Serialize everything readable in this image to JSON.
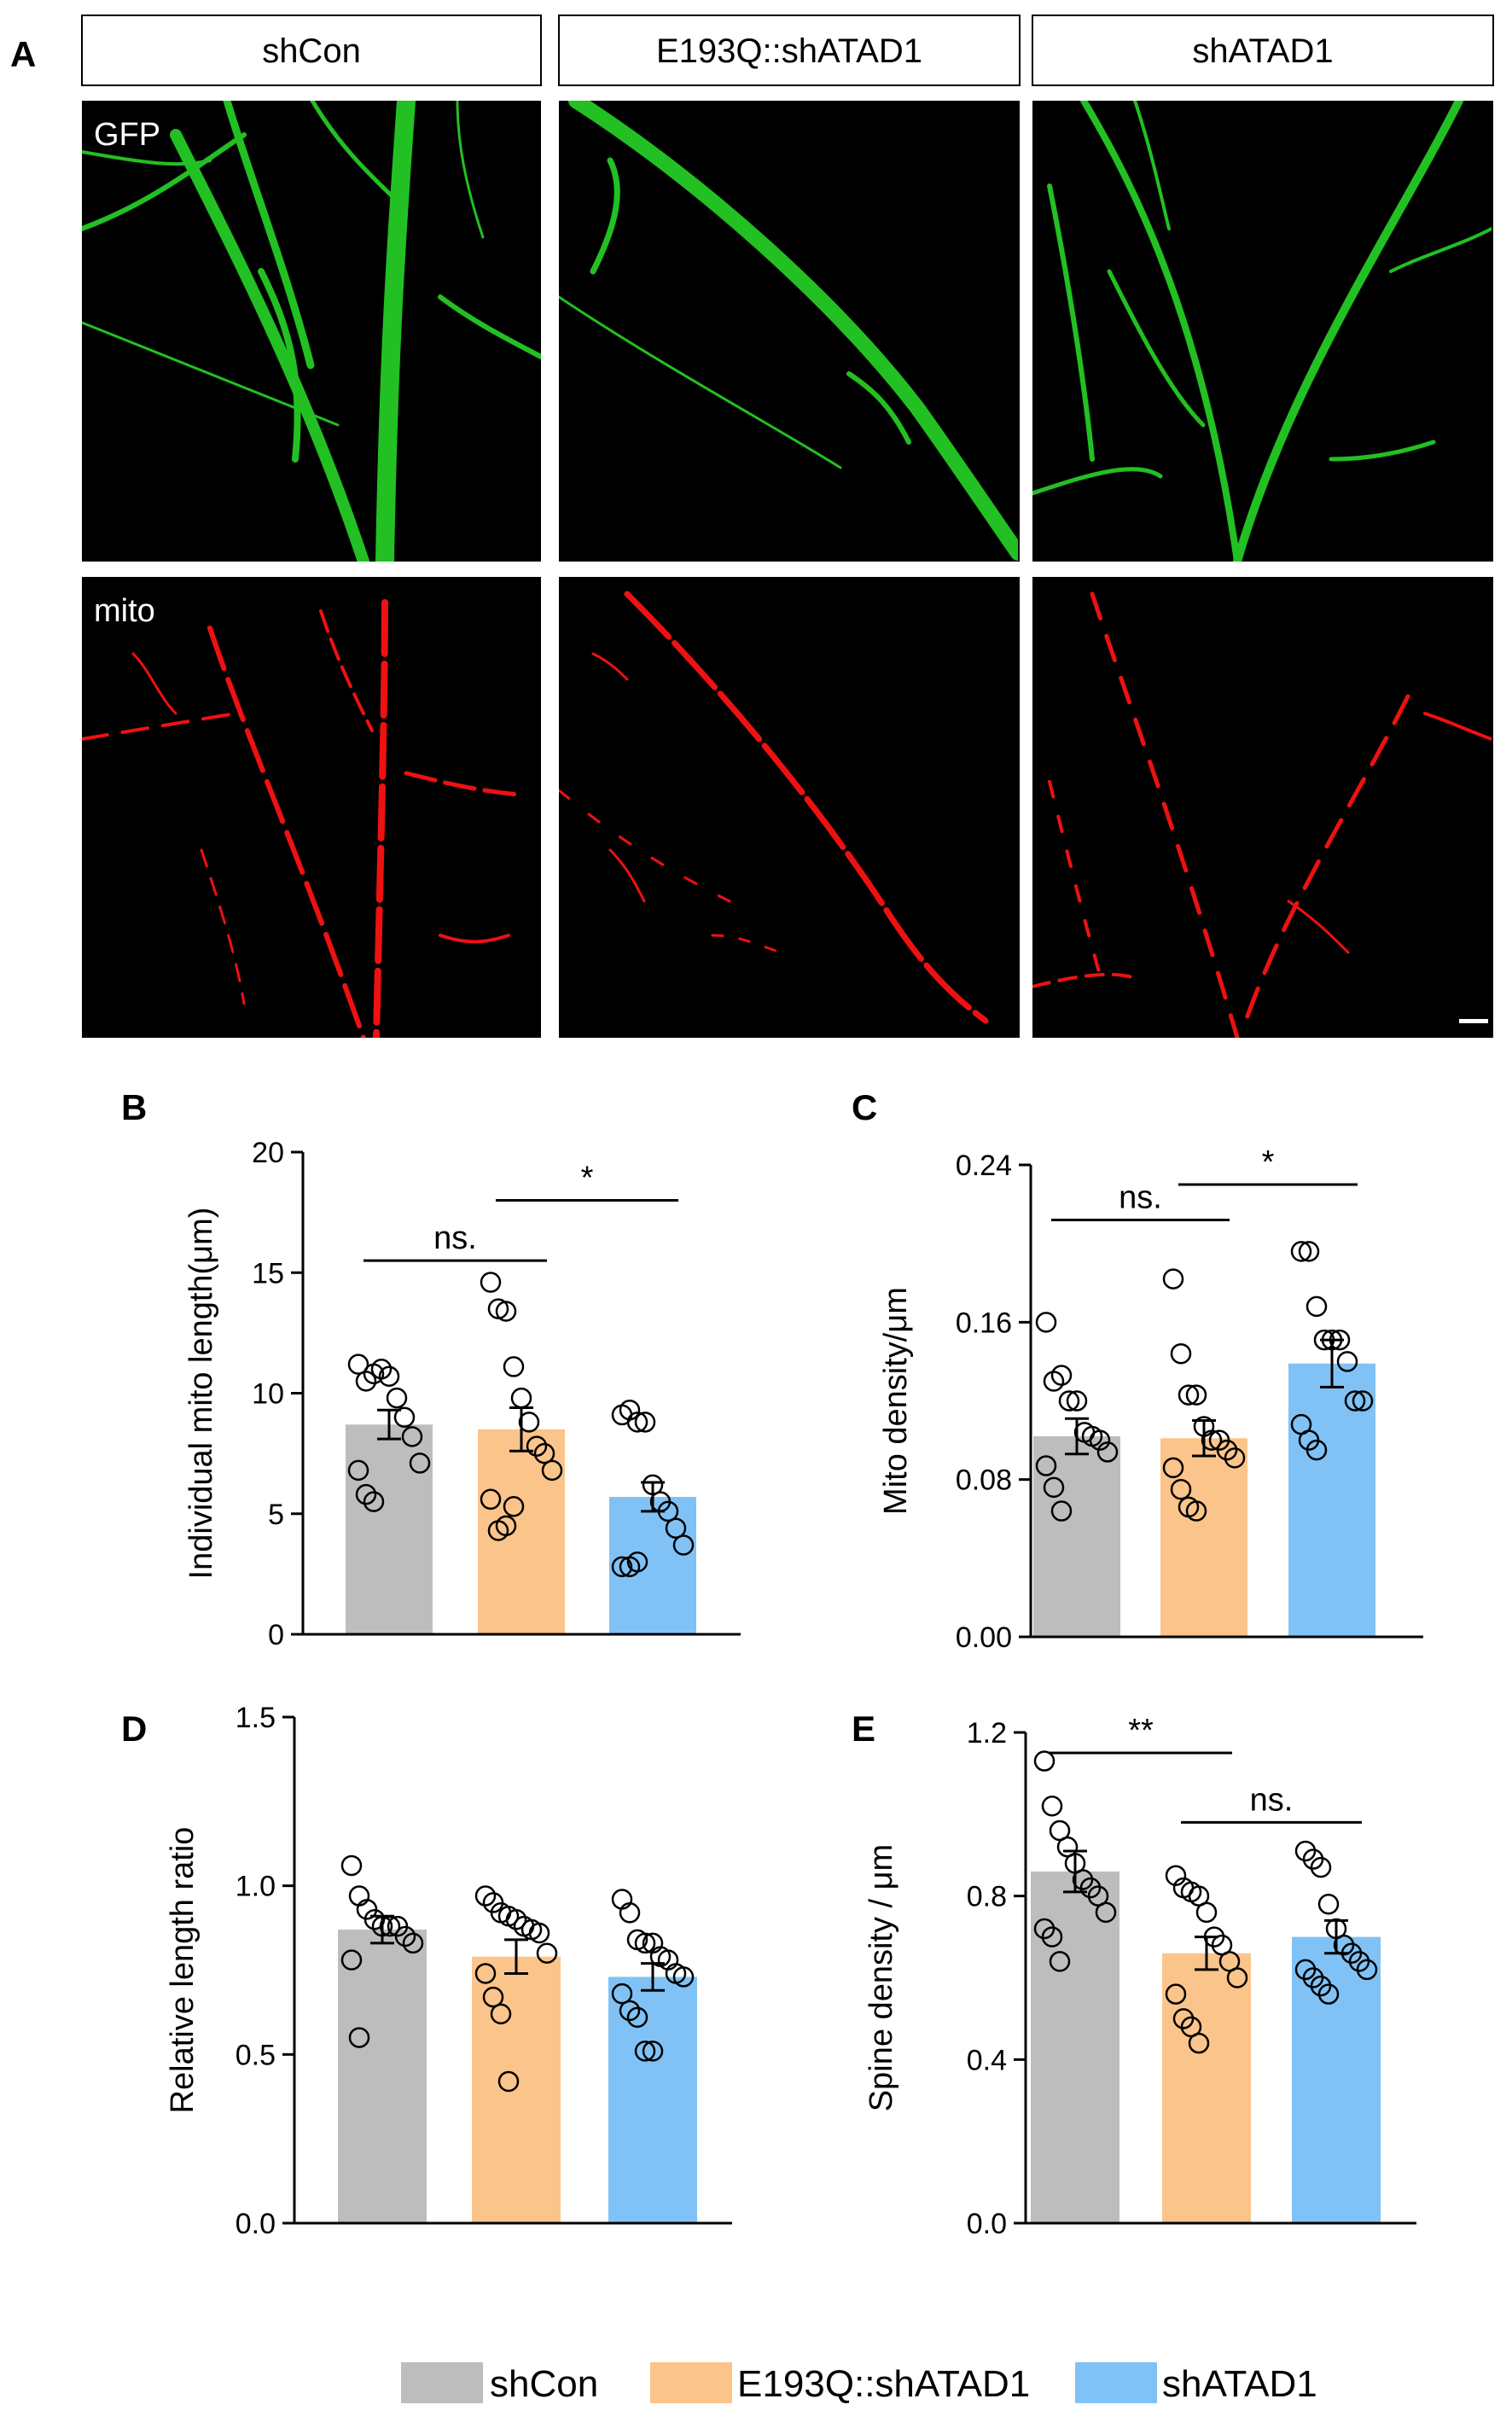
{
  "panels": {
    "A": "A",
    "B": "B",
    "C": "C",
    "D": "D",
    "E": "E"
  },
  "micrograph": {
    "columns": [
      "shCon",
      "E193Q::shATAD1",
      "shATAD1"
    ],
    "row_labels": [
      "GFP",
      "mito"
    ],
    "colors": {
      "gfp": "#22c022",
      "mito": "#ee1111",
      "background": "#000000"
    }
  },
  "legend": {
    "items": [
      {
        "label": "shCon",
        "color": "#bdbdbd"
      },
      {
        "label": "E193Q::shATAD1",
        "color": "#fbc48a"
      },
      {
        "label": "shATAD1",
        "color": "#80c2f5"
      }
    ]
  },
  "chart_data": [
    {
      "panel": "B",
      "type": "bar",
      "ylabel": "Individual mito length(μm)",
      "ylim": [
        0,
        20
      ],
      "yticks": [
        "0",
        "5",
        "10",
        "15",
        "20"
      ],
      "ytick_values": [
        0,
        5,
        10,
        15,
        20
      ],
      "categories": [
        "shCon",
        "E193Q::shATAD1",
        "shATAD1"
      ],
      "values": [
        8.7,
        8.5,
        5.7
      ],
      "errors": [
        0.6,
        0.9,
        0.6
      ],
      "points": [
        [
          11.2,
          10.5,
          10.8,
          11.0,
          10.7,
          9.8,
          9.0,
          8.2,
          7.1,
          6.8,
          5.8,
          5.5
        ],
        [
          14.6,
          13.5,
          13.4,
          11.1,
          9.8,
          8.8,
          7.8,
          7.5,
          6.8,
          5.6,
          4.3,
          4.5,
          5.3
        ],
        [
          9.1,
          9.3,
          8.8,
          8.8,
          6.2,
          5.5,
          5.1,
          4.4,
          3.7,
          2.8,
          2.8,
          3.0
        ]
      ],
      "colors": [
        "#bdbdbd",
        "#fbc48a",
        "#80c2f5"
      ],
      "brackets": [
        {
          "from": 0,
          "to": 1,
          "y": 15.5,
          "label": "ns."
        },
        {
          "from": 1,
          "to": 2,
          "y": 18.0,
          "label": "*"
        }
      ]
    },
    {
      "panel": "C",
      "type": "bar",
      "ylabel": "Mito density/μm",
      "ylim": [
        0,
        0.24
      ],
      "yticks": [
        "0.00",
        "0.08",
        "0.16",
        "0.24"
      ],
      "ytick_values": [
        0,
        0.08,
        0.16,
        0.24
      ],
      "categories": [
        "shCon",
        "E193Q::shATAD1",
        "shATAD1"
      ],
      "values": [
        0.102,
        0.101,
        0.139
      ],
      "errors": [
        0.009,
        0.009,
        0.012
      ],
      "points": [
        [
          0.16,
          0.13,
          0.133,
          0.12,
          0.12,
          0.104,
          0.102,
          0.1,
          0.094,
          0.087,
          0.076,
          0.064
        ],
        [
          0.182,
          0.144,
          0.123,
          0.123,
          0.107,
          0.1,
          0.1,
          0.095,
          0.091,
          0.086,
          0.075,
          0.066,
          0.064
        ],
        [
          0.196,
          0.196,
          0.168,
          0.151,
          0.151,
          0.151,
          0.14,
          0.12,
          0.12,
          0.108,
          0.1,
          0.095
        ]
      ],
      "colors": [
        "#bdbdbd",
        "#fbc48a",
        "#80c2f5"
      ],
      "brackets": [
        {
          "from": 0,
          "to": 1,
          "y": 0.212,
          "label": "ns."
        },
        {
          "from": 1,
          "to": 2,
          "y": 0.23,
          "label": "*"
        }
      ]
    },
    {
      "panel": "D",
      "type": "bar",
      "ylabel": "Relative length ratio",
      "ylim": [
        0,
        1.5
      ],
      "yticks": [
        "0.0",
        "0.5",
        "1.0",
        "1.5"
      ],
      "ytick_values": [
        0,
        0.5,
        1.0,
        1.5
      ],
      "categories": [
        "shCon",
        "E193Q::shATAD1",
        "shATAD1"
      ],
      "values": [
        0.87,
        0.79,
        0.73
      ],
      "errors": [
        0.04,
        0.05,
        0.04
      ],
      "points": [
        [
          1.06,
          0.97,
          0.93,
          0.9,
          0.88,
          0.88,
          0.88,
          0.85,
          0.83,
          0.78,
          0.55
        ],
        [
          0.97,
          0.95,
          0.92,
          0.91,
          0.9,
          0.88,
          0.87,
          0.86,
          0.8,
          0.74,
          0.67,
          0.62,
          0.42
        ],
        [
          0.96,
          0.92,
          0.84,
          0.83,
          0.83,
          0.79,
          0.78,
          0.74,
          0.73,
          0.68,
          0.63,
          0.61,
          0.51,
          0.51
        ]
      ],
      "colors": [
        "#bdbdbd",
        "#fbc48a",
        "#80c2f5"
      ],
      "brackets": []
    },
    {
      "panel": "E",
      "type": "bar",
      "ylabel": "Spine density / μm",
      "ylim": [
        0,
        1.2
      ],
      "yticks": [
        "0.0",
        "0.4",
        "0.8",
        "1.2"
      ],
      "ytick_values": [
        0,
        0.4,
        0.8,
        1.2
      ],
      "categories": [
        "shCon",
        "E193Q::shATAD1",
        "shATAD1"
      ],
      "values": [
        0.86,
        0.66,
        0.7
      ],
      "errors": [
        0.05,
        0.04,
        0.04
      ],
      "points": [
        [
          1.13,
          1.02,
          0.96,
          0.92,
          0.88,
          0.84,
          0.82,
          0.8,
          0.76,
          0.72,
          0.7,
          0.64
        ],
        [
          0.85,
          0.82,
          0.81,
          0.8,
          0.76,
          0.7,
          0.68,
          0.64,
          0.6,
          0.56,
          0.5,
          0.48,
          0.44
        ],
        [
          0.91,
          0.89,
          0.87,
          0.78,
          0.72,
          0.68,
          0.66,
          0.64,
          0.62,
          0.62,
          0.6,
          0.58,
          0.56
        ]
      ],
      "colors": [
        "#bdbdbd",
        "#fbc48a",
        "#80c2f5"
      ],
      "brackets": [
        {
          "from": 0,
          "to": 1,
          "y": 1.15,
          "label": "**"
        },
        {
          "from": 1,
          "to": 2,
          "y": 0.98,
          "label": "ns."
        }
      ]
    }
  ]
}
